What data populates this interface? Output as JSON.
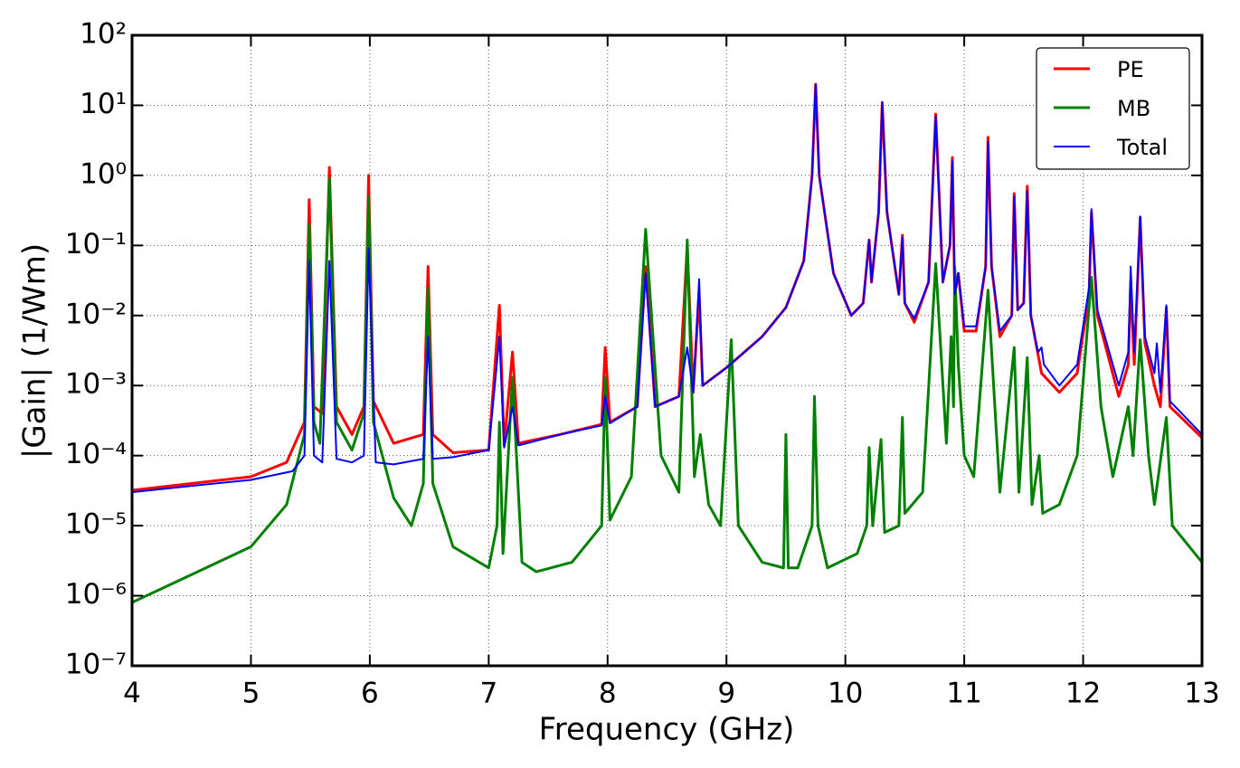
{
  "chart_data": {
    "type": "line",
    "x_label": "Frequency (GHz)",
    "y_label": "|Gain| (1/Wm)",
    "xlim": [
      4,
      13
    ],
    "xticks": [
      4,
      5,
      6,
      7,
      8,
      9,
      10,
      11,
      12,
      13
    ],
    "ylim": [
      1e-07,
      100
    ],
    "y_scale": "log",
    "yticks": [
      {
        "value": 1e-07,
        "label": "10⁻⁷"
      },
      {
        "value": 1e-06,
        "label": "10⁻⁶"
      },
      {
        "value": 1e-05,
        "label": "10⁻⁵"
      },
      {
        "value": 0.0001,
        "label": "10⁻⁴"
      },
      {
        "value": 0.001,
        "label": "10⁻³"
      },
      {
        "value": 0.01,
        "label": "10⁻²"
      },
      {
        "value": 0.1,
        "label": "10⁻¹"
      },
      {
        "value": 1,
        "label": "10⁰"
      },
      {
        "value": 10,
        "label": "10¹"
      },
      {
        "value": 100,
        "label": "10²"
      }
    ],
    "grid": true,
    "legend": "upper right",
    "series": [
      {
        "name": "PE",
        "color": "#ff0000",
        "x": [
          4.0,
          4.5,
          5.0,
          5.3,
          5.45,
          5.49,
          5.53,
          5.6,
          5.66,
          5.72,
          5.85,
          5.95,
          5.99,
          6.03,
          6.2,
          6.45,
          6.49,
          6.53,
          6.7,
          7.0,
          7.09,
          7.13,
          7.2,
          7.25,
          7.6,
          7.95,
          7.98,
          8.02,
          8.25,
          8.32,
          8.4,
          8.6,
          8.67,
          8.72,
          8.77,
          8.8,
          9.0,
          9.3,
          9.5,
          9.65,
          9.72,
          9.75,
          9.78,
          9.9,
          10.05,
          10.15,
          10.2,
          10.22,
          10.28,
          10.31,
          10.35,
          10.45,
          10.48,
          10.5,
          10.58,
          10.7,
          10.76,
          10.82,
          10.88,
          10.9,
          10.92,
          10.95,
          11.0,
          11.1,
          11.18,
          11.2,
          11.23,
          11.3,
          11.4,
          11.42,
          11.45,
          11.5,
          11.53,
          11.56,
          11.65,
          11.8,
          11.95,
          12.05,
          12.07,
          12.12,
          12.3,
          12.38,
          12.4,
          12.43,
          12.48,
          12.52,
          12.6,
          12.65,
          12.7,
          12.73,
          13.0
        ],
        "values": [
          3.2e-05,
          4e-05,
          5e-05,
          8e-05,
          0.0003,
          0.45,
          0.0005,
          0.0004,
          1.3,
          0.0005,
          0.0002,
          0.0005,
          1.0,
          0.0006,
          0.00015,
          0.0002,
          0.05,
          0.0002,
          0.00011,
          0.00012,
          0.014,
          0.00014,
          0.003,
          0.00015,
          0.0002,
          0.00028,
          0.0035,
          0.0003,
          0.0005,
          0.05,
          0.0005,
          0.0007,
          0.1,
          0.0008,
          0.02,
          0.001,
          0.0018,
          0.005,
          0.013,
          0.06,
          1,
          20,
          1,
          0.04,
          0.01,
          0.015,
          0.12,
          0.03,
          0.3,
          11,
          0.3,
          0.02,
          0.14,
          0.015,
          0.008,
          0.03,
          7.5,
          0.03,
          0.1,
          1.8,
          0.02,
          0.04,
          0.006,
          0.006,
          0.05,
          3.5,
          0.05,
          0.005,
          0.01,
          0.55,
          0.012,
          0.015,
          0.7,
          0.01,
          0.0015,
          0.0008,
          0.0015,
          0.02,
          0.3,
          0.01,
          0.0007,
          0.002,
          0.03,
          0.002,
          0.25,
          0.004,
          0.001,
          0.0005,
          0.013,
          0.0005,
          0.00018
        ]
      },
      {
        "name": "MB",
        "color": "#008000",
        "x": [
          4.0,
          4.5,
          5.0,
          5.3,
          5.45,
          5.49,
          5.53,
          5.58,
          5.66,
          5.72,
          5.85,
          5.95,
          5.99,
          6.03,
          6.2,
          6.35,
          6.45,
          6.49,
          6.53,
          6.7,
          7.0,
          7.07,
          7.09,
          7.12,
          7.2,
          7.28,
          7.4,
          7.7,
          7.95,
          7.98,
          8.02,
          8.2,
          8.32,
          8.45,
          8.6,
          8.67,
          8.73,
          8.78,
          8.85,
          8.95,
          9.04,
          9.1,
          9.3,
          9.48,
          9.5,
          9.52,
          9.6,
          9.72,
          9.74,
          9.77,
          9.85,
          10.1,
          10.18,
          10.2,
          10.23,
          10.3,
          10.33,
          10.45,
          10.48,
          10.5,
          10.65,
          10.76,
          10.85,
          10.89,
          10.91,
          10.92,
          10.95,
          11.0,
          11.08,
          11.2,
          11.3,
          11.42,
          11.46,
          11.53,
          11.57,
          11.63,
          11.66,
          11.8,
          11.95,
          12.07,
          12.15,
          12.25,
          12.38,
          12.42,
          12.48,
          12.55,
          12.6,
          12.7,
          12.75,
          13.0
        ],
        "values": [
          8e-07,
          2e-06,
          5e-06,
          2e-05,
          0.0002,
          0.2,
          0.0003,
          0.00015,
          0.9,
          0.0003,
          0.00012,
          0.0004,
          0.5,
          0.0003,
          2.5e-05,
          1e-05,
          4e-05,
          0.025,
          4e-05,
          5e-06,
          2.5e-06,
          1e-05,
          0.0003,
          4e-06,
          0.0013,
          3e-06,
          2.2e-06,
          3e-06,
          1e-05,
          0.0013,
          1.2e-05,
          5e-05,
          0.17,
          0.0001,
          3e-05,
          0.12,
          5e-05,
          0.0002,
          2e-05,
          1e-05,
          0.0045,
          1e-05,
          3e-06,
          2.5e-06,
          0.0002,
          2.5e-06,
          2.5e-06,
          1e-05,
          0.0007,
          1e-05,
          2.5e-06,
          4e-06,
          1e-05,
          0.00013,
          1e-05,
          0.00017,
          8e-06,
          1e-05,
          0.00035,
          1.5e-05,
          3e-05,
          0.055,
          0.00015,
          0.005,
          0.0005,
          0.05,
          0.002,
          0.0001,
          5e-05,
          0.023,
          3e-05,
          0.0035,
          3e-05,
          0.0025,
          2e-05,
          0.0001,
          1.5e-05,
          2e-05,
          0.0001,
          0.035,
          0.0005,
          5e-05,
          0.0005,
          0.0001,
          0.0045,
          0.0001,
          2e-05,
          0.00035,
          1e-05,
          3e-06
        ]
      },
      {
        "name": "Total",
        "color": "#0000ff",
        "x": [
          4.0,
          4.5,
          5.0,
          5.35,
          5.45,
          5.49,
          5.53,
          5.6,
          5.66,
          5.72,
          5.85,
          5.95,
          5.99,
          6.05,
          6.2,
          6.45,
          6.49,
          6.53,
          6.7,
          7.0,
          7.09,
          7.13,
          7.2,
          7.25,
          7.6,
          7.95,
          7.98,
          8.02,
          8.25,
          8.32,
          8.4,
          8.6,
          8.67,
          8.72,
          8.77,
          8.8,
          9.0,
          9.3,
          9.5,
          9.65,
          9.72,
          9.75,
          9.78,
          9.9,
          10.05,
          10.15,
          10.2,
          10.22,
          10.28,
          10.31,
          10.35,
          10.45,
          10.48,
          10.5,
          10.58,
          10.7,
          10.76,
          10.82,
          10.88,
          10.9,
          10.92,
          10.95,
          11.0,
          11.1,
          11.18,
          11.2,
          11.23,
          11.3,
          11.4,
          11.42,
          11.45,
          11.5,
          11.53,
          11.56,
          11.62,
          11.65,
          11.67,
          11.8,
          11.95,
          12.05,
          12.07,
          12.12,
          12.3,
          12.38,
          12.4,
          12.43,
          12.48,
          12.52,
          12.6,
          12.62,
          12.65,
          12.7,
          12.73,
          13.0
        ],
        "values": [
          3e-05,
          3.7e-05,
          4.5e-05,
          6e-05,
          0.0001,
          0.06,
          0.0001,
          8e-05,
          0.06,
          9e-05,
          8e-05,
          0.0001,
          0.09,
          8e-05,
          7.5e-05,
          9e-05,
          0.005,
          9e-05,
          9.5e-05,
          0.00012,
          0.005,
          0.00013,
          0.0005,
          0.00014,
          0.0002,
          0.00027,
          0.0007,
          0.00029,
          0.0005,
          0.04,
          0.0005,
          0.0007,
          0.0035,
          0.0008,
          0.033,
          0.001,
          0.0018,
          0.005,
          0.013,
          0.06,
          1,
          20,
          1,
          0.04,
          0.01,
          0.015,
          0.12,
          0.03,
          0.3,
          11,
          0.3,
          0.02,
          0.13,
          0.015,
          0.009,
          0.03,
          7,
          0.03,
          0.1,
          1.6,
          0.02,
          0.04,
          0.007,
          0.007,
          0.05,
          3,
          0.05,
          0.006,
          0.01,
          0.5,
          0.012,
          0.015,
          0.6,
          0.01,
          0.003,
          0.0035,
          0.002,
          0.001,
          0.002,
          0.025,
          0.33,
          0.012,
          0.001,
          0.003,
          0.05,
          0.003,
          0.26,
          0.005,
          0.0015,
          0.004,
          0.0008,
          0.014,
          0.0006,
          0.0002
        ]
      }
    ]
  }
}
